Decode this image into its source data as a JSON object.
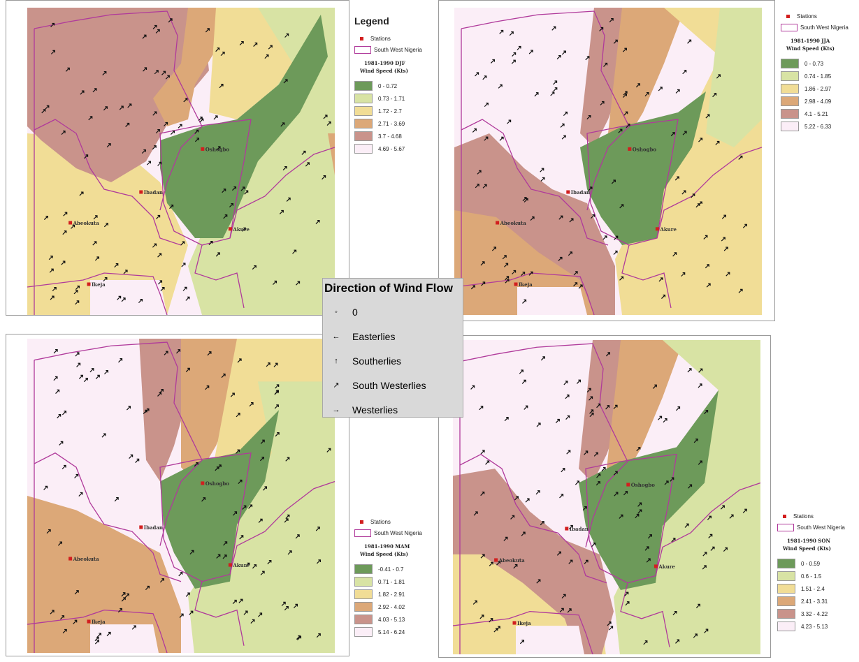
{
  "panels": [
    {
      "id": "djf",
      "legend_title": "Legend",
      "stations_label": "Stations",
      "boundary_label": "South West Nigeria",
      "period_label": "1981-1990 DJF",
      "unit_label": "Wind Speed (Kts)",
      "classes": [
        {
          "range": "0 - 0.72",
          "color": "#6d9a5a"
        },
        {
          "range": "0.73 - 1.71",
          "color": "#d8e3a4"
        },
        {
          "range": "1.72 - 2.7",
          "color": "#f1dd96"
        },
        {
          "range": "2.71 - 3.69",
          "color": "#dca878"
        },
        {
          "range": "3.7 - 4.68",
          "color": "#c9938b"
        },
        {
          "range": "4.69 - 5.67",
          "color": "#fbeef7"
        }
      ]
    },
    {
      "id": "jja",
      "stations_label": "Stations",
      "boundary_label": "South West Nigeria",
      "period_label": "1981-1990 JJA",
      "unit_label": "Wind Speed (Kts)",
      "classes": [
        {
          "range": "0 - 0.73",
          "color": "#6d9a5a"
        },
        {
          "range": "0.74 - 1.85",
          "color": "#d8e3a4"
        },
        {
          "range": "1.86 - 2.97",
          "color": "#f1dd96"
        },
        {
          "range": "2.98 - 4.09",
          "color": "#dca878"
        },
        {
          "range": "4.1 - 5.21",
          "color": "#c9938b"
        },
        {
          "range": "5.22 - 6.33",
          "color": "#fbeef7"
        }
      ]
    },
    {
      "id": "mam",
      "stations_label": "Stations",
      "boundary_label": "South West Nigeria",
      "period_label": "1981-1990 MAM",
      "unit_label": "Wind Speed (Kts)",
      "classes": [
        {
          "range": "-0.41 - 0.7",
          "color": "#6d9a5a"
        },
        {
          "range": "0.71 - 1.81",
          "color": "#d8e3a4"
        },
        {
          "range": "1.82 - 2.91",
          "color": "#f1dd96"
        },
        {
          "range": "2.92 - 4.02",
          "color": "#dca878"
        },
        {
          "range": "4.03 - 5.13",
          "color": "#c9938b"
        },
        {
          "range": "5.14 - 6.24",
          "color": "#fbeef7"
        }
      ]
    },
    {
      "id": "son",
      "stations_label": "Stations",
      "boundary_label": "South West Nigeria",
      "period_label": "1981-1990 SON",
      "unit_label": "Wind Speed (Kts)",
      "classes": [
        {
          "range": "0 - 0.59",
          "color": "#6d9a5a"
        },
        {
          "range": "0.6 - 1.5",
          "color": "#d8e3a4"
        },
        {
          "range": "1.51 - 2.4",
          "color": "#f1dd96"
        },
        {
          "range": "2.41 - 3.31",
          "color": "#dca878"
        },
        {
          "range": "3.32 - 4.22",
          "color": "#c9938b"
        },
        {
          "range": "4.23 - 5.13",
          "color": "#fbeef7"
        }
      ]
    }
  ],
  "stations": [
    "Oshogbo",
    "Ibadan",
    "Abeokuta",
    "Akure",
    "Ikeja"
  ],
  "wind_legend": {
    "title": "Direction of Wind Flow",
    "items": [
      {
        "label": "0",
        "icon": "calm-icon",
        "glyph": "◦"
      },
      {
        "label": "Easterlies",
        "icon": "arrow-west-icon",
        "glyph": "←"
      },
      {
        "label": "Southerlies",
        "icon": "arrow-north-icon",
        "glyph": "↑"
      },
      {
        "label": "South Westerlies",
        "icon": "arrow-northeast-icon",
        "glyph": "↗"
      },
      {
        "label": "Westerlies",
        "icon": "arrow-east-icon",
        "glyph": "→"
      }
    ]
  },
  "colors": {
    "station": "#d21f1f",
    "boundary": "#b03a9b",
    "arrow": "#111111"
  }
}
